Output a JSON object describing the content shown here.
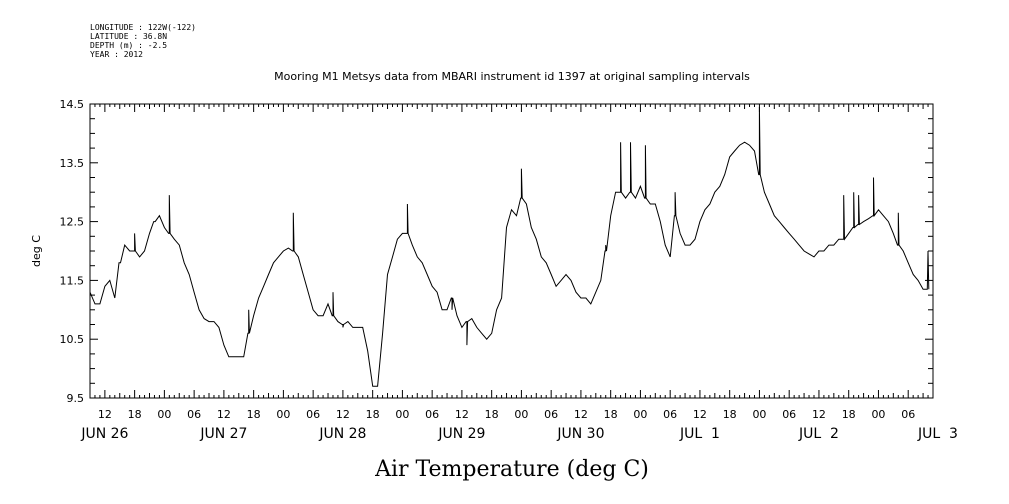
{
  "header": {
    "longitude": "LONGITUDE : 122W(-122)",
    "latitude": "LATITUDE : 36.8N",
    "depth": "DEPTH (m) : -2.5",
    "year": "YEAR : 2012"
  },
  "chart_data": {
    "type": "line",
    "title": "Mooring M1 Metsys data from MBARI instrument id 1397 at original sampling intervals",
    "xlabel": "Air Temperature (deg C)",
    "ylabel": "deg C",
    "ylim": [
      9.5,
      14.5
    ],
    "yticks": [
      "9.5",
      "10.5",
      "11.5",
      "12.5",
      "13.5",
      "14.5"
    ],
    "xlim_hours": [
      9,
      179
    ],
    "hour_ticks": [
      "12",
      "18",
      "00",
      "06",
      "12",
      "18",
      "00",
      "06",
      "12",
      "18",
      "00",
      "06",
      "12",
      "18",
      "00",
      "06",
      "12",
      "18",
      "00",
      "06",
      "12",
      "18",
      "00",
      "06",
      "12",
      "18",
      "00",
      "06"
    ],
    "day_labels": [
      "JUN 26",
      "JUN 27",
      "JUN 28",
      "JUN 29",
      "JUN 30",
      "JUL  1",
      "JUL  2",
      "JUL  3"
    ],
    "grid": false,
    "series": [
      {
        "values_by_hour": [
          [
            9,
            11.3
          ],
          [
            10,
            11.1
          ],
          [
            11,
            11.1
          ],
          [
            12,
            11.4
          ],
          [
            13,
            11.5
          ],
          [
            14,
            11.2
          ],
          [
            15,
            11.8
          ],
          [
            16,
            12.1
          ],
          [
            17,
            12.0
          ],
          [
            18,
            12.0
          ],
          [
            19,
            11.9
          ],
          [
            20,
            12.0
          ],
          [
            21,
            12.3
          ],
          [
            22,
            12.5
          ],
          [
            23,
            12.6
          ],
          [
            24,
            12.4
          ],
          [
            25,
            12.3
          ],
          [
            26,
            12.2
          ],
          [
            27,
            12.1
          ],
          [
            28,
            11.8
          ],
          [
            29,
            11.6
          ],
          [
            30,
            11.3
          ],
          [
            31,
            11.0
          ],
          [
            32,
            10.85
          ],
          [
            33,
            10.8
          ],
          [
            34,
            10.8
          ],
          [
            35,
            10.7
          ],
          [
            36,
            10.4
          ],
          [
            37,
            10.2
          ],
          [
            38,
            10.2
          ],
          [
            39,
            10.2
          ],
          [
            40,
            10.2
          ],
          [
            41,
            10.6
          ],
          [
            42,
            10.9
          ],
          [
            43,
            11.2
          ],
          [
            44,
            11.4
          ],
          [
            45,
            11.6
          ],
          [
            46,
            11.8
          ],
          [
            47,
            11.9
          ],
          [
            48,
            12.0
          ],
          [
            49,
            12.05
          ],
          [
            50,
            12.0
          ],
          [
            51,
            11.9
          ],
          [
            52,
            11.6
          ],
          [
            53,
            11.3
          ],
          [
            54,
            11.0
          ],
          [
            55,
            10.9
          ],
          [
            56,
            10.9
          ],
          [
            57,
            11.1
          ],
          [
            58,
            10.9
          ],
          [
            59,
            10.8
          ],
          [
            60,
            10.75
          ],
          [
            61,
            10.8
          ],
          [
            62,
            10.7
          ],
          [
            63,
            10.7
          ],
          [
            64,
            10.7
          ],
          [
            65,
            10.3
          ],
          [
            66,
            9.7
          ],
          [
            67,
            9.7
          ],
          [
            68,
            10.6
          ],
          [
            69,
            11.6
          ],
          [
            70,
            11.9
          ],
          [
            71,
            12.2
          ],
          [
            72,
            12.3
          ],
          [
            73,
            12.3
          ],
          [
            74,
            12.1
          ],
          [
            75,
            11.9
          ],
          [
            76,
            11.8
          ],
          [
            77,
            11.6
          ],
          [
            78,
            11.4
          ],
          [
            79,
            11.3
          ],
          [
            80,
            11.0
          ],
          [
            81,
            11.0
          ],
          [
            82,
            11.2
          ],
          [
            83,
            10.9
          ],
          [
            84,
            10.7
          ],
          [
            85,
            10.8
          ],
          [
            86,
            10.85
          ],
          [
            87,
            10.7
          ],
          [
            88,
            10.6
          ],
          [
            89,
            10.5
          ],
          [
            90,
            10.6
          ],
          [
            91,
            11.0
          ],
          [
            92,
            11.2
          ],
          [
            93,
            12.4
          ],
          [
            94,
            12.7
          ],
          [
            95,
            12.6
          ],
          [
            96,
            12.9
          ],
          [
            97,
            12.8
          ],
          [
            98,
            12.4
          ],
          [
            99,
            12.2
          ],
          [
            100,
            11.9
          ],
          [
            101,
            11.8
          ],
          [
            102,
            11.6
          ],
          [
            103,
            11.4
          ],
          [
            104,
            11.5
          ],
          [
            105,
            11.6
          ],
          [
            106,
            11.5
          ],
          [
            107,
            11.3
          ],
          [
            108,
            11.2
          ],
          [
            109,
            11.2
          ],
          [
            110,
            11.1
          ],
          [
            111,
            11.3
          ],
          [
            112,
            11.5
          ],
          [
            113,
            12.0
          ],
          [
            114,
            12.6
          ],
          [
            115,
            13.0
          ],
          [
            116,
            13.0
          ],
          [
            117,
            12.9
          ],
          [
            118,
            13.0
          ],
          [
            119,
            12.9
          ],
          [
            120,
            13.1
          ],
          [
            121,
            12.9
          ],
          [
            122,
            12.8
          ],
          [
            123,
            12.8
          ],
          [
            124,
            12.5
          ],
          [
            125,
            12.1
          ],
          [
            126,
            11.9
          ],
          [
            127,
            12.6
          ],
          [
            128,
            12.3
          ],
          [
            129,
            12.1
          ],
          [
            130,
            12.1
          ],
          [
            131,
            12.2
          ],
          [
            132,
            12.5
          ],
          [
            133,
            12.7
          ],
          [
            134,
            12.8
          ],
          [
            135,
            13.0
          ],
          [
            136,
            13.1
          ],
          [
            137,
            13.3
          ],
          [
            138,
            13.6
          ],
          [
            139,
            13.7
          ],
          [
            140,
            13.8
          ],
          [
            141,
            13.85
          ],
          [
            142,
            13.8
          ],
          [
            143,
            13.7
          ],
          [
            144,
            13.3
          ],
          [
            145,
            13.0
          ],
          [
            146,
            12.8
          ],
          [
            147,
            12.6
          ],
          [
            148,
            12.5
          ],
          [
            149,
            12.4
          ],
          [
            150,
            12.3
          ],
          [
            151,
            12.2
          ],
          [
            152,
            12.1
          ],
          [
            153,
            12.0
          ],
          [
            154,
            11.95
          ],
          [
            155,
            11.9
          ],
          [
            156,
            12.0
          ],
          [
            157,
            12.0
          ],
          [
            158,
            12.1
          ],
          [
            159,
            12.1
          ],
          [
            160,
            12.2
          ],
          [
            161,
            12.2
          ],
          [
            162,
            12.3
          ],
          [
            163,
            12.4
          ],
          [
            164,
            12.45
          ],
          [
            165,
            12.5
          ],
          [
            166,
            12.55
          ],
          [
            167,
            12.6
          ],
          [
            168,
            12.7
          ],
          [
            169,
            12.6
          ],
          [
            170,
            12.5
          ],
          [
            171,
            12.3
          ],
          [
            172,
            12.1
          ],
          [
            173,
            12.0
          ],
          [
            174,
            11.8
          ],
          [
            175,
            11.6
          ],
          [
            176,
            11.5
          ],
          [
            177,
            11.35
          ]
        ],
        "spikes_by_hour": [
          [
            15,
            11.8
          ],
          [
            18,
            12.3
          ],
          [
            22,
            12.5
          ],
          [
            25,
            12.95
          ],
          [
            41,
            11.0
          ],
          [
            50,
            12.65
          ],
          [
            58,
            11.3
          ],
          [
            60,
            10.7
          ],
          [
            73,
            12.8
          ],
          [
            82,
            11.0
          ],
          [
            85,
            10.4
          ],
          [
            96,
            13.4
          ],
          [
            113,
            12.1
          ],
          [
            116,
            13.85
          ],
          [
            118,
            13.85
          ],
          [
            121,
            13.8
          ],
          [
            127,
            13.0
          ],
          [
            144,
            14.45
          ],
          [
            161,
            12.95
          ],
          [
            163,
            13.0
          ],
          [
            164,
            12.95
          ],
          [
            167,
            13.25
          ],
          [
            172,
            12.65
          ],
          [
            178,
            12.0
          ]
        ]
      }
    ]
  }
}
